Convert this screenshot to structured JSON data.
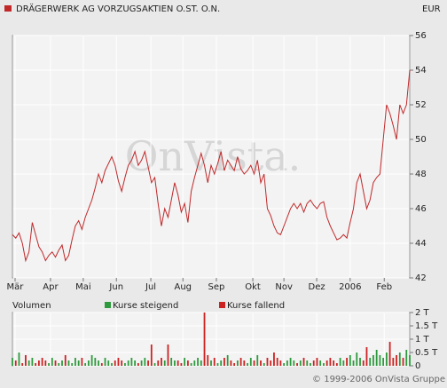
{
  "chart_data": [
    {
      "type": "line",
      "title": "DRÄGERWERK AG VORZUGSAKTIEN O.ST. O.N.",
      "unit": "EUR",
      "watermark": "OnVista.",
      "series": [
        {
          "name": "DRÄGERWERK AG VORZUGSAKTIEN O.ST. O.N.",
          "color": "#c0282a",
          "values": [
            44.5,
            44.3,
            44.6,
            44.0,
            43.0,
            43.5,
            45.2,
            44.5,
            43.8,
            43.5,
            43.0,
            43.3,
            43.5,
            43.2,
            43.6,
            43.9,
            43.0,
            43.3,
            44.2,
            45.0,
            45.3,
            44.8,
            45.5,
            46.0,
            46.5,
            47.2,
            48.0,
            47.5,
            48.2,
            48.6,
            49.0,
            48.5,
            47.6,
            47.0,
            47.8,
            48.5,
            48.8,
            49.3,
            48.5,
            48.8,
            49.3,
            48.4,
            47.5,
            47.8,
            46.3,
            45.0,
            46.0,
            45.5,
            46.5,
            47.5,
            46.8,
            45.8,
            46.3,
            45.2,
            47.0,
            47.8,
            48.5,
            49.2,
            48.5,
            47.5,
            48.5,
            48.0,
            48.6,
            49.3,
            48.2,
            48.8,
            48.5,
            48.2,
            49.0,
            48.3,
            48.0,
            48.2,
            48.5,
            48.0,
            48.8,
            47.5,
            48.0,
            46.0,
            45.6,
            45.0,
            44.6,
            44.5,
            45.0,
            45.5,
            46.0,
            46.3,
            46.0,
            46.3,
            45.8,
            46.3,
            46.5,
            46.2,
            46.0,
            46.3,
            46.4,
            45.5,
            45.0,
            44.6,
            44.2,
            44.3,
            44.5,
            44.3,
            45.2,
            46.0,
            47.5,
            48.0,
            47.0,
            46.0,
            46.5,
            47.5,
            47.8,
            48.0,
            50.0,
            52.0,
            51.5,
            50.8,
            50.0,
            52.0,
            51.5,
            52.0,
            54.0
          ]
        }
      ],
      "xlim": [
        0,
        120
      ],
      "xticks": [
        {
          "value": 0.8,
          "label": "Mär"
        },
        {
          "value": 11.5,
          "label": "Apr"
        },
        {
          "value": 21.4,
          "label": "Mai"
        },
        {
          "value": 31.4,
          "label": "Jun"
        },
        {
          "value": 41.8,
          "label": "Jul"
        },
        {
          "value": 51.5,
          "label": "Aug"
        },
        {
          "value": 61.6,
          "label": "Sep"
        },
        {
          "value": 72.6,
          "label": "Okt"
        },
        {
          "value": 82,
          "label": "Nov"
        },
        {
          "value": 91.9,
          "label": "Dez"
        },
        {
          "value": 102,
          "label": "2006"
        },
        {
          "value": 112.3,
          "label": "Feb"
        }
      ],
      "ylim": [
        42,
        56
      ],
      "yticks": [
        42,
        44,
        46,
        48,
        50,
        52,
        54,
        56
      ],
      "grid": true
    },
    {
      "type": "bar",
      "title": "Volumen",
      "legend": [
        {
          "name": "Kurse steigend",
          "color": "#2e9a3e"
        },
        {
          "name": "Kurse fallend",
          "color": "#cc2222"
        }
      ],
      "values": [
        0.3,
        0.2,
        0.5,
        0.1,
        0.4,
        0.2,
        0.3,
        0.1,
        0.2,
        0.3,
        0.2,
        0.1,
        0.3,
        0.2,
        0.1,
        0.2,
        0.4,
        0.2,
        0.1,
        0.3,
        0.2,
        0.3,
        0.1,
        0.2,
        0.4,
        0.3,
        0.2,
        0.1,
        0.3,
        0.2,
        0.1,
        0.2,
        0.3,
        0.2,
        0.1,
        0.2,
        0.3,
        0.2,
        0.1,
        0.2,
        0.3,
        0.2,
        0.8,
        0.1,
        0.2,
        0.3,
        0.2,
        0.8,
        0.3,
        0.2,
        0.2,
        0.1,
        0.3,
        0.2,
        0.1,
        0.2,
        0.3,
        0.2,
        2.0,
        0.4,
        0.2,
        0.3,
        0.1,
        0.2,
        0.3,
        0.4,
        0.2,
        0.1,
        0.2,
        0.3,
        0.2,
        0.1,
        0.3,
        0.2,
        0.4,
        0.2,
        0.1,
        0.3,
        0.2,
        0.5,
        0.3,
        0.2,
        0.1,
        0.2,
        0.3,
        0.2,
        0.1,
        0.2,
        0.3,
        0.2,
        0.1,
        0.2,
        0.3,
        0.2,
        0.1,
        0.2,
        0.3,
        0.2,
        0.1,
        0.3,
        0.2,
        0.3,
        0.4,
        0.2,
        0.5,
        0.3,
        0.2,
        0.7,
        0.3,
        0.4,
        0.6,
        0.4,
        0.3,
        0.5,
        0.9,
        0.3,
        0.4,
        0.5,
        0.3,
        0.6,
        0.4
      ],
      "ylim": [
        0,
        2
      ],
      "yticks": [
        0,
        {
          "value": 0.5,
          "label": "0.5 T"
        },
        {
          "value": 1,
          "label": "1 T"
        },
        {
          "value": 1.5,
          "label": "1.5 T"
        },
        {
          "value": 2,
          "label": "2 T"
        }
      ],
      "grid": true
    },
    {
      "type": "note",
      "copyright": "© 1999-2006 OnVista Gruppe"
    }
  ]
}
